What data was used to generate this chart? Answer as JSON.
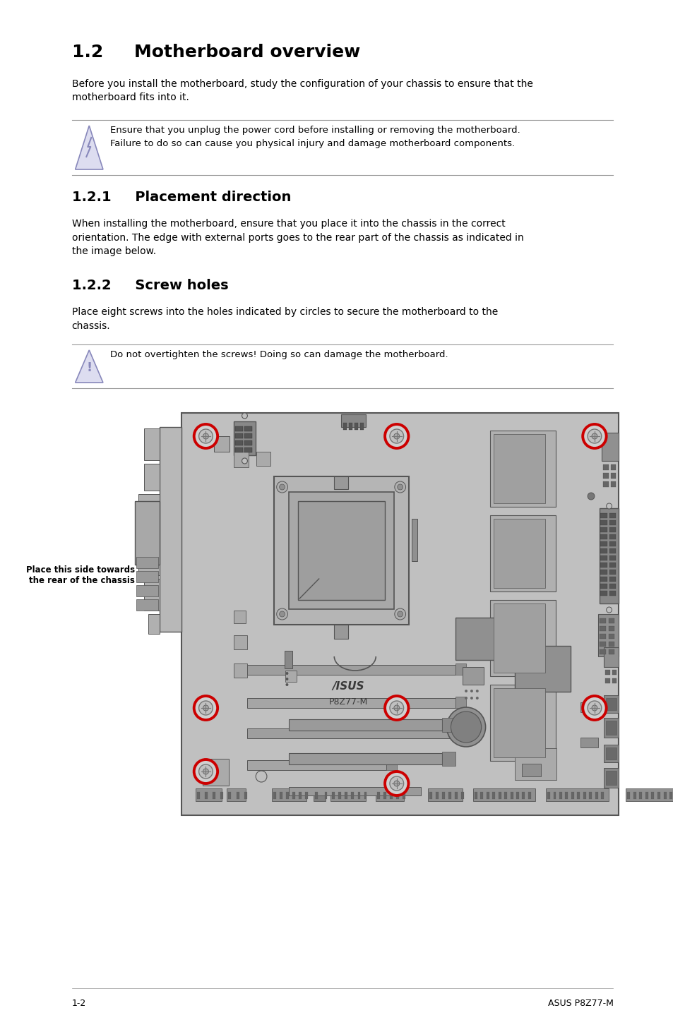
{
  "title": "1.2     Motherboard overview",
  "subtitle1": "Before you install the motherboard, study the configuration of your chassis to ensure that the\nmotherboard fits into it.",
  "warning1_text": "Ensure that you unplug the power cord before installing or removing the motherboard.\nFailure to do so can cause you physical injury and damage motherboard components.",
  "section121": "1.2.1     Placement direction",
  "section121_text": "When installing the motherboard, ensure that you place it into the chassis in the correct\norientation. The edge with external ports goes to the rear part of the chassis as indicated in\nthe image below.",
  "section122": "1.2.2     Screw holes",
  "section122_text": "Place eight screws into the holes indicated by circles to secure the motherboard to the\nchassis.",
  "warning2_text": "Do not overtighten the screws! Doing so can damage the motherboard.",
  "annotation": "Place this side towards\nthe rear of the chassis",
  "footer_left": "1-2",
  "footer_right": "ASUS P8Z77-M",
  "bg_color": "#ffffff",
  "text_color": "#000000",
  "line_color": "#999999",
  "screw_color": "#cc0000",
  "board_fill": "#c0c0c0",
  "board_edge": "#555555",
  "comp_fill": "#aaaaaa",
  "comp_edge": "#555555",
  "dark_comp": "#888888",
  "icon_fill": "#ddddf0",
  "icon_edge": "#8888bb"
}
